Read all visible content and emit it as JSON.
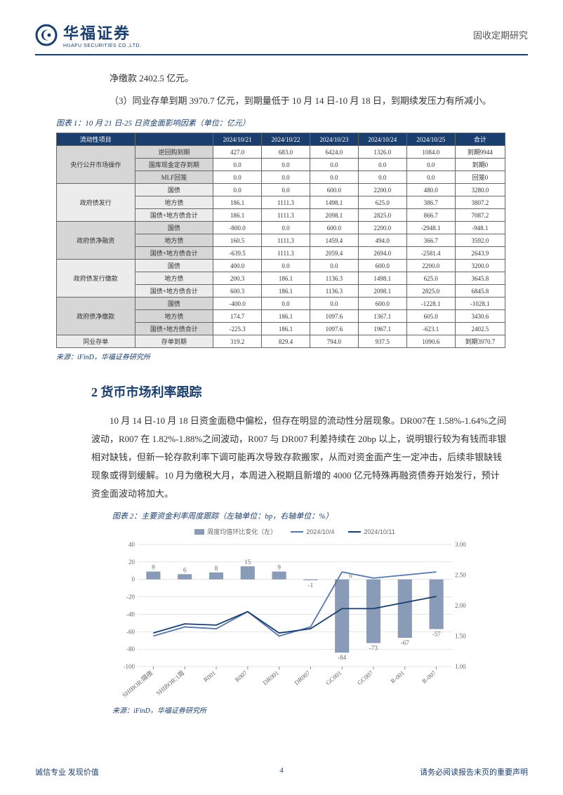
{
  "header": {
    "logo_cn": "华福证券",
    "logo_en": "HUAFU SECURITIES CO.,LTD.",
    "right": "固收定期研究"
  },
  "para1": "净缴款 2402.5 亿元。",
  "para2": "（3）同业存单到期 3970.7 亿元，到期量低于 10 月 14 日-10 月 18 日，到期续发压力有所减小。",
  "fig1_title": "图表 1：10 月 21 日-25 日资金面影响因素（单位：亿元）",
  "table1": {
    "headers": [
      "流动性项目",
      "",
      "2024/10/21",
      "2024/10/22",
      "2024/10/23",
      "2024/10/24",
      "2024/10/25",
      "合计"
    ],
    "groups": [
      {
        "name": "央行公开市场操作",
        "shade": "g0",
        "rows": [
          {
            "label": "逆回购到期",
            "cells": [
              "427.0",
              "683.0",
              "6424.0",
              "1326.0",
              "1084.0",
              "到期9944"
            ]
          },
          {
            "label": "国库现金定存到期",
            "cells": [
              "0.0",
              "0.0",
              "0.0",
              "0.0",
              "0.0",
              "到期0"
            ]
          },
          {
            "label": "MLF回笼",
            "cells": [
              "0.0",
              "0.0",
              "0.0",
              "0.0",
              "0.0",
              "回笼0"
            ]
          }
        ]
      },
      {
        "name": "政府债发行",
        "shade": "g1",
        "rows": [
          {
            "label": "国债",
            "cells": [
              "0.0",
              "0.0",
              "600.0",
              "2200.0",
              "480.0",
              "3280.0"
            ]
          },
          {
            "label": "地方债",
            "cells": [
              "186.1",
              "1111.3",
              "1498.1",
              "625.0",
              "386.7",
              "3807.2"
            ]
          },
          {
            "label": "国债+地方债合计",
            "cells": [
              "186.1",
              "1111.3",
              "2098.1",
              "2825.0",
              "866.7",
              "7087.2"
            ]
          }
        ]
      },
      {
        "name": "政府债净融资",
        "shade": "g0",
        "rows": [
          {
            "label": "国债",
            "cells": [
              "-800.0",
              "0.0",
              "600.0",
              "2200.0",
              "-2948.1",
              "-948.1"
            ]
          },
          {
            "label": "地方债",
            "cells": [
              "160.5",
              "1111.3",
              "1459.4",
              "494.0",
              "366.7",
              "3592.0"
            ]
          },
          {
            "label": "国债+地方债合计",
            "cells": [
              "-639.5",
              "1111.3",
              "2059.4",
              "2694.0",
              "-2581.4",
              "2643.9"
            ]
          }
        ]
      },
      {
        "name": "政府债发行缴款",
        "shade": "g1",
        "rows": [
          {
            "label": "国债",
            "cells": [
              "400.0",
              "0.0",
              "0.0",
              "600.0",
              "2200.0",
              "3200.0"
            ]
          },
          {
            "label": "地方债",
            "cells": [
              "200.3",
              "186.1",
              "1136.3",
              "1498.1",
              "625.0",
              "3645.8"
            ]
          },
          {
            "label": "国债+地方债合计",
            "cells": [
              "600.3",
              "186.1",
              "1136.3",
              "2098.1",
              "2825.0",
              "6845.8"
            ]
          }
        ]
      },
      {
        "name": "政府债净缴款",
        "shade": "g0",
        "rows": [
          {
            "label": "国债",
            "cells": [
              "-400.0",
              "0.0",
              "0.0",
              "600.0",
              "-1228.1",
              "-1028.1"
            ]
          },
          {
            "label": "地方债",
            "cells": [
              "174.7",
              "186.1",
              "1097.6",
              "1367.1",
              "605.0",
              "3430.6"
            ]
          },
          {
            "label": "国债+地方债合计",
            "cells": [
              "-225.3",
              "186.1",
              "1097.6",
              "1967.1",
              "-623.1",
              "2402.5"
            ]
          }
        ]
      },
      {
        "name": "同业存单",
        "shade": "g1",
        "rows": [
          {
            "label": "存单到期",
            "cells": [
              "319.2",
              "829.4",
              "794.0",
              "937.5",
              "1090.6",
              "到期3970.7"
            ]
          }
        ]
      }
    ]
  },
  "source": "来源：iFinD，华福证券研究所",
  "section2": "2 货币市场利率跟踪",
  "para3": "10 月 14 日-10 月 18 日资金面稳中偏松，但存在明显的流动性分层现象。DR007在 1.58%-1.64%之间波动，R007 在 1.82%-1.88%之间波动，R007 与 DR007 利差持续在 20bp 以上，说明银行较为有钱而非银相对缺钱，但新一轮存款利率下调可能再次导致存款搬家，从而对资金面产生一定冲击，后续非银缺钱现象或得到缓解。10 月为缴税大月，本周进入税期且新增的 4000 亿元特殊再融资债券开始发行，预计资金面波动将加大。",
  "fig2_title": "图表 2：主要资金利率周度跟踪（左轴单位：bp，右轴单位：%）",
  "chart": {
    "type": "bar+line",
    "legend": {
      "bar": "周度均值环比变化（左）",
      "line1": "2024/10/4",
      "line2": "2024/10/11"
    },
    "categories": [
      "SHIBOR:隔夜",
      "SHIBOR:1周",
      "R001",
      "R007",
      "DR001",
      "DR007",
      "GC001",
      "GC007",
      "R-001",
      "R-007"
    ],
    "bar_values": [
      9,
      6,
      8,
      15,
      9,
      -1,
      -84,
      -73,
      -67,
      -57
    ],
    "bar_labels": [
      "9",
      "6",
      "8",
      "15",
      "9",
      "-1",
      "-84",
      "-73",
      "-67",
      "-57"
    ],
    "zero_label": "0",
    "line1_values": [
      1.5,
      1.65,
      1.62,
      1.9,
      1.5,
      1.65,
      2.55,
      2.45,
      2.5,
      2.55
    ],
    "line2_values": [
      1.55,
      1.7,
      1.68,
      1.9,
      1.55,
      1.62,
      1.95,
      1.95,
      2.05,
      2.15
    ],
    "left_axis": {
      "min": -100,
      "max": 40,
      "ticks": [
        -100,
        -80,
        -60,
        -40,
        -20,
        0,
        20,
        40
      ]
    },
    "right_axis": {
      "min": 1.0,
      "max": 3.0,
      "ticks": [
        "1.00",
        "1.50",
        "2.00",
        "2.50",
        "3.00"
      ]
    },
    "colors": {
      "bar": "#8a9bb8",
      "line1": "#5577aa",
      "line2": "#1a3e6d",
      "grid": "#cccccc",
      "axis": "#888888",
      "text": "#666666",
      "bg": "#ffffff"
    },
    "font_size": 9
  },
  "footer": {
    "left": "诚信专业  发现价值",
    "mid": "4",
    "right": "请务必阅读报告末页的重要声明"
  }
}
